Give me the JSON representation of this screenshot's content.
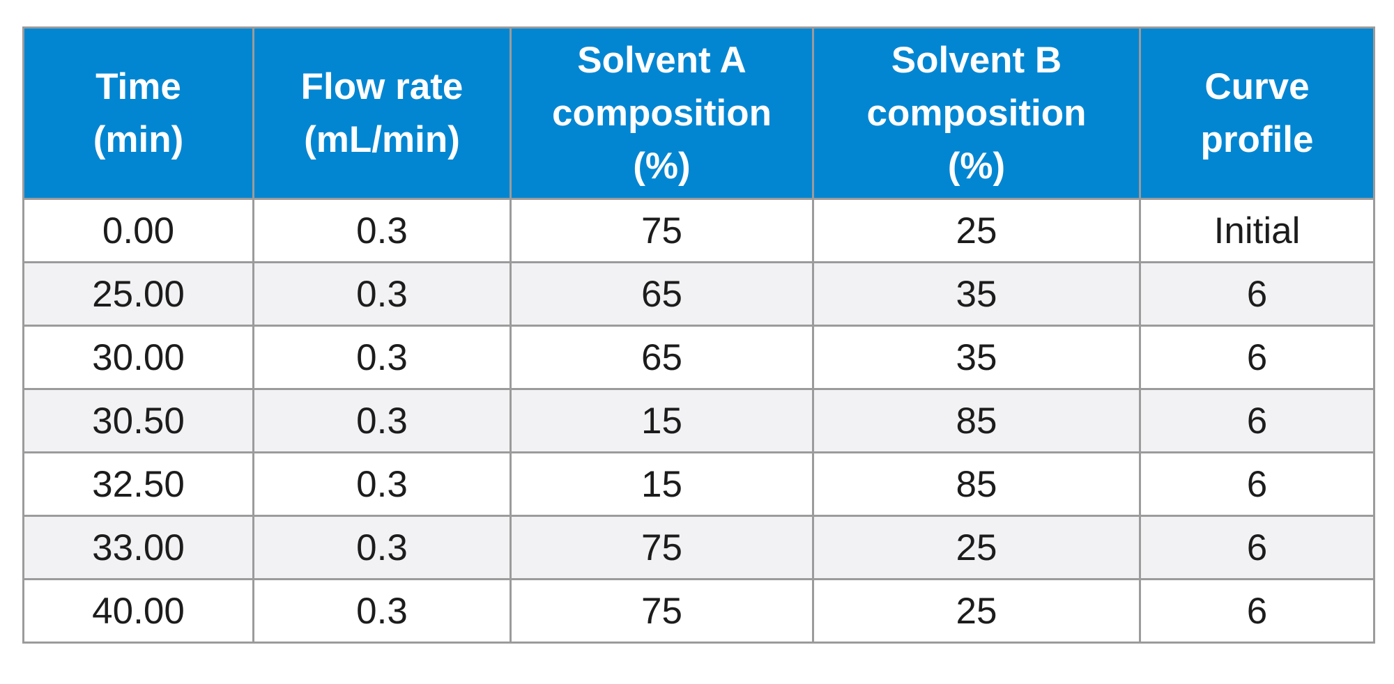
{
  "table": {
    "headers": [
      "Time\n(min)",
      "Flow rate\n(mL/min)",
      "Solvent A\ncomposition\n(%)",
      "Solvent B\ncomposition\n(%)",
      "Curve\nprofile"
    ],
    "rows": [
      [
        "0.00",
        "0.3",
        "75",
        "25",
        "Initial"
      ],
      [
        "25.00",
        "0.3",
        "65",
        "35",
        "6"
      ],
      [
        "30.00",
        "0.3",
        "65",
        "35",
        "6"
      ],
      [
        "30.50",
        "0.3",
        "15",
        "85",
        "6"
      ],
      [
        "32.50",
        "0.3",
        "15",
        "85",
        "6"
      ],
      [
        "33.00",
        "0.3",
        "75",
        "25",
        "6"
      ],
      [
        "40.00",
        "0.3",
        "75",
        "25",
        "6"
      ]
    ]
  },
  "colors": {
    "header_background": "#0386d2",
    "header_text": "#ffffff",
    "row_alt_background": "#f2f2f4",
    "border": "#9b9b9b"
  }
}
